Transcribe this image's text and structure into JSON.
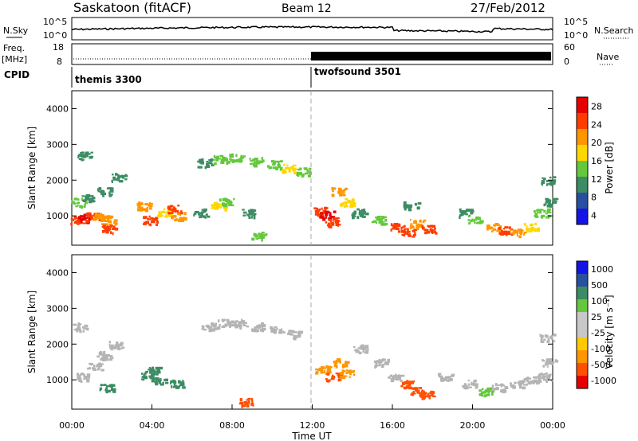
{
  "header": {
    "station": "Saskatoon (fitACF)",
    "beam": "Beam 12",
    "date": "27/Feb/2012"
  },
  "top_panels": {
    "nsky_label": "N.Sky",
    "nsky_ticks": [
      "10^5",
      "10^0"
    ],
    "nsearch_label": "N.Search",
    "nsearch_ticks": [
      "10^5",
      "10^0"
    ],
    "freq_label": "Freq.",
    "freq_unit": "[MHz]",
    "freq_ticks": [
      "18",
      "8"
    ],
    "nave_label": "Nave",
    "nave_ticks": [
      "60",
      "0"
    ],
    "cpid_label": "CPID",
    "cpid_programs": [
      "themis 3300",
      "twofsound 3501"
    ]
  },
  "colors": {
    "power_scale": [
      "#1414e6",
      "#2850a0",
      "#3c8c64",
      "#64c83c",
      "#ffd700",
      "#ff9600",
      "#ff3c00",
      "#e60000"
    ],
    "velocity_scale": [
      "#e60000",
      "#ff5000",
      "#ff9600",
      "#ffc800",
      "#c8c8c8",
      "#c8c8c8",
      "#64c83c",
      "#3c8c64",
      "#2850a0",
      "#1414e6"
    ],
    "ground_scatter": "#b4b4b4"
  },
  "chart_data": [
    {
      "type": "heatmap",
      "name": "power",
      "ylabel": "Slant Range [km]",
      "xlabel": "",
      "ylim": [
        180,
        4500
      ],
      "y_ticks": [
        "1000",
        "2000",
        "3000",
        "4000"
      ],
      "colorbar_label": "Power [dB]",
      "colorbar_ticks": [
        "28",
        "24",
        "20",
        "16",
        "12",
        "8",
        "4"
      ],
      "cells": [
        [
          0.2,
          900,
          24
        ],
        [
          0.6,
          950,
          28
        ],
        [
          1.0,
          1000,
          26
        ],
        [
          1.4,
          980,
          22
        ],
        [
          1.8,
          900,
          20
        ],
        [
          1.8,
          650,
          26
        ],
        [
          0.3,
          1400,
          12
        ],
        [
          0.8,
          1500,
          8
        ],
        [
          1.6,
          1700,
          8
        ],
        [
          2.3,
          2100,
          8
        ],
        [
          0.6,
          2700,
          8
        ],
        [
          3.6,
          1300,
          20
        ],
        [
          3.9,
          900,
          24
        ],
        [
          4.6,
          1100,
          16
        ],
        [
          5.1,
          1200,
          24
        ],
        [
          5.3,
          1000,
          20
        ],
        [
          6.4,
          1100,
          8
        ],
        [
          7.3,
          1300,
          16
        ],
        [
          7.7,
          1400,
          12
        ],
        [
          8.8,
          1100,
          8
        ],
        [
          9.3,
          450,
          12
        ],
        [
          6.6,
          2500,
          8
        ],
        [
          7.4,
          2600,
          12
        ],
        [
          8.2,
          2650,
          12
        ],
        [
          9.2,
          2550,
          12
        ],
        [
          10.1,
          2450,
          12
        ],
        [
          10.8,
          2350,
          16
        ],
        [
          11.5,
          2250,
          12
        ],
        [
          12.3,
          1150,
          24
        ],
        [
          12.7,
          1050,
          28
        ],
        [
          13.0,
          850,
          24
        ],
        [
          13.3,
          1700,
          20
        ],
        [
          13.7,
          1400,
          16
        ],
        [
          14.3,
          1100,
          8
        ],
        [
          15.3,
          900,
          12
        ],
        [
          16.2,
          700,
          24
        ],
        [
          16.8,
          550,
          26
        ],
        [
          17.2,
          800,
          20
        ],
        [
          17.8,
          650,
          24
        ],
        [
          16.9,
          1300,
          8
        ],
        [
          19.6,
          1100,
          8
        ],
        [
          20.1,
          900,
          12
        ],
        [
          21.0,
          700,
          20
        ],
        [
          21.6,
          600,
          24
        ],
        [
          22.2,
          550,
          22
        ],
        [
          22.9,
          700,
          16
        ],
        [
          23.4,
          1100,
          12
        ],
        [
          23.8,
          1400,
          8
        ],
        [
          23.7,
          2000,
          8
        ]
      ]
    },
    {
      "type": "heatmap",
      "name": "velocity",
      "ylabel": "Slant Range [km]",
      "xlabel": "Time UT",
      "ylim": [
        180,
        4500
      ],
      "y_ticks": [
        "1000",
        "2000",
        "3000",
        "4000"
      ],
      "x_ticks": [
        "00:00",
        "04:00",
        "08:00",
        "12:00",
        "16:00",
        "20:00",
        "00:00"
      ],
      "colorbar_label": "Velocity [m s⁻¹]",
      "colorbar_ticks": [
        "1000",
        "500",
        "100",
        "25",
        "-25",
        "-100",
        "-500",
        "-1000"
      ],
      "cells": [
        [
          0.5,
          1100,
          0
        ],
        [
          1.1,
          1400,
          0
        ],
        [
          1.6,
          1700,
          0
        ],
        [
          2.2,
          2000,
          0
        ],
        [
          0.4,
          2500,
          0
        ],
        [
          1.7,
          800,
          100
        ],
        [
          3.8,
          1100,
          300
        ],
        [
          4.3,
          1000,
          300
        ],
        [
          4.0,
          1300,
          200
        ],
        [
          5.2,
          900,
          100
        ],
        [
          6.8,
          2500,
          0
        ],
        [
          7.6,
          2600,
          0
        ],
        [
          8.4,
          2600,
          0
        ],
        [
          9.3,
          2500,
          0
        ],
        [
          10.2,
          2400,
          0
        ],
        [
          11.1,
          2300,
          0
        ],
        [
          8.7,
          400,
          -300
        ],
        [
          12.5,
          1300,
          -200
        ],
        [
          13.0,
          1100,
          -400
        ],
        [
          13.4,
          1500,
          -200
        ],
        [
          13.7,
          1200,
          -150
        ],
        [
          14.4,
          1900,
          0
        ],
        [
          15.4,
          1500,
          0
        ],
        [
          16.1,
          1100,
          0
        ],
        [
          16.7,
          900,
          -300
        ],
        [
          17.2,
          700,
          -400
        ],
        [
          17.7,
          600,
          -300
        ],
        [
          18.6,
          1100,
          0
        ],
        [
          19.8,
          900,
          0
        ],
        [
          20.6,
          700,
          50
        ],
        [
          21.3,
          800,
          0
        ],
        [
          22.2,
          900,
          0
        ],
        [
          22.9,
          1000,
          0
        ],
        [
          23.6,
          1100,
          0
        ],
        [
          23.8,
          1500,
          0
        ],
        [
          23.7,
          2200,
          0
        ]
      ]
    }
  ]
}
